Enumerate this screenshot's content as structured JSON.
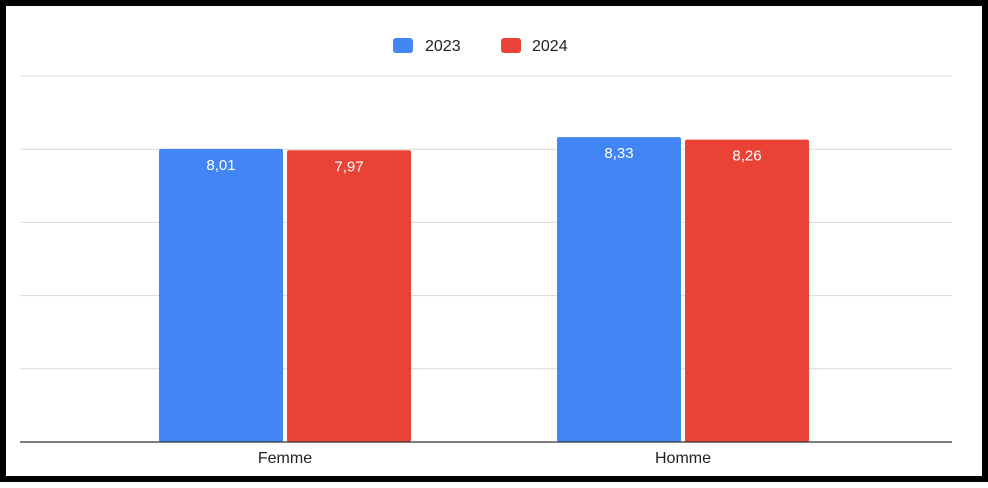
{
  "chart_data": {
    "type": "bar",
    "categories": [
      "Femme",
      "Homme"
    ],
    "series": [
      {
        "name": "2023",
        "color": "#4285f4",
        "values": [
          8.01,
          8.33
        ],
        "labels": [
          "8,01",
          "8,33"
        ]
      },
      {
        "name": "2024",
        "color": "#ea4335",
        "values": [
          7.97,
          8.26
        ],
        "labels": [
          "7,97",
          "8,26"
        ]
      }
    ],
    "ylim": [
      0,
      10
    ],
    "gridlines": [
      2,
      4,
      6,
      8,
      10
    ],
    "grid": true,
    "legend_position": "top-center",
    "title": "",
    "xlabel": "",
    "ylabel": ""
  }
}
